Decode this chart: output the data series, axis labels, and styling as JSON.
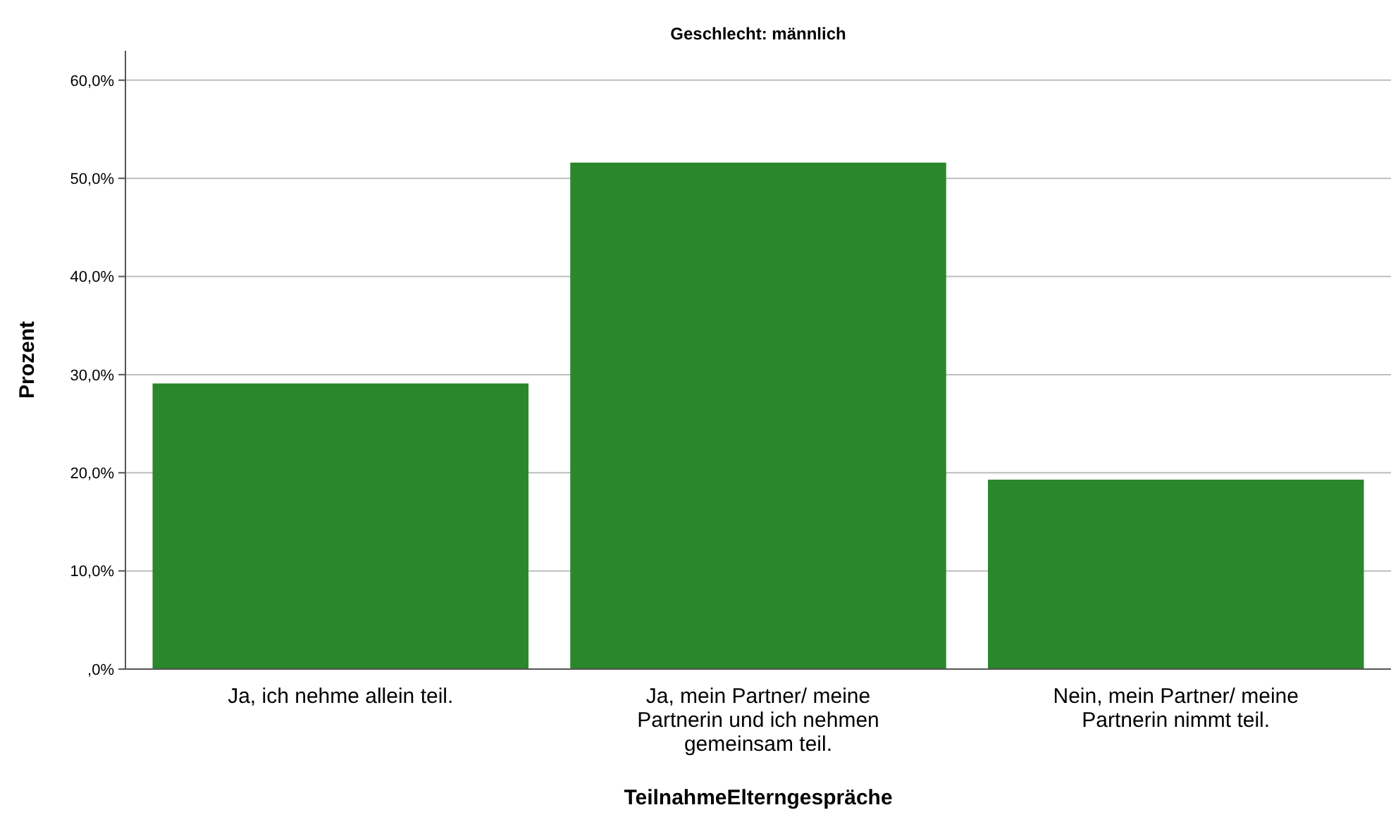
{
  "chart_data": {
    "type": "bar",
    "title": "Geschlecht: männlich",
    "xlabel": "TeilnahmeElterngespräche",
    "ylabel": "Prozent",
    "categories": [
      "Ja, ich nehme allein teil.",
      "Ja, mein Partner/ meine Partnerin und ich nehmen gemeinsam teil.",
      "Nein, mein Partner/ meine Partnerin nimmt teil."
    ],
    "values": [
      29.1,
      51.6,
      19.3
    ],
    "color": "#2b872b",
    "ylim": [
      0,
      63
    ],
    "yticks": [
      {
        "value": 0,
        "label": ",0%"
      },
      {
        "value": 10,
        "label": "10,0%"
      },
      {
        "value": 20,
        "label": "20,0%"
      },
      {
        "value": 30,
        "label": "30,0%"
      },
      {
        "value": 40,
        "label": "40,0%"
      },
      {
        "value": 50,
        "label": "50,0%"
      },
      {
        "value": 60,
        "label": "60,0%"
      }
    ],
    "grid": "y"
  }
}
